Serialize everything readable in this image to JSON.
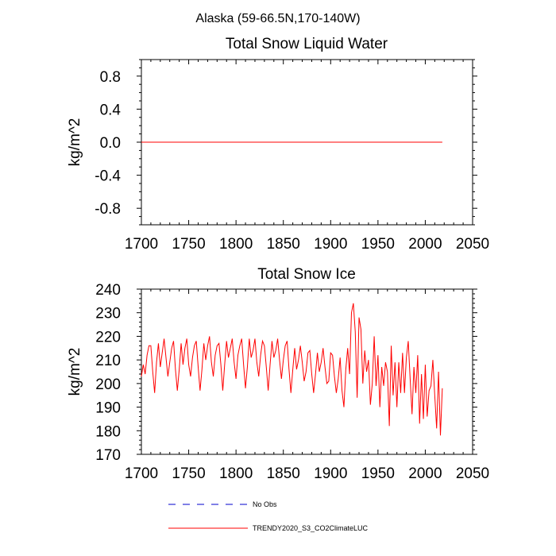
{
  "figure_title": "Alaska (59-66.5N,170-140W)",
  "colors": {
    "model": "#ff0000",
    "obs": "#0000cc",
    "axis": "#000000"
  },
  "legend": [
    {
      "label": "No Obs",
      "style": "dashed",
      "color": "#0000cc"
    },
    {
      "label": "TRENDY2020_S3_CO2ClimateLUC",
      "style": "solid",
      "color": "#ff0000"
    }
  ],
  "chart_data": [
    {
      "type": "line",
      "title": "Total Snow Liquid Water",
      "xlabel": "",
      "ylabel": "kg/m^2",
      "xlim": [
        1700,
        2050
      ],
      "ylim": [
        -1.0,
        1.0
      ],
      "xticks": [
        "1700",
        "1750",
        "1800",
        "1850",
        "1900",
        "1950",
        "2000",
        "2050"
      ],
      "yticks": [
        "-0.8",
        "-0.4",
        "0.0",
        "0.4",
        "0.8"
      ],
      "series": [
        {
          "name": "TRENDY2020_S3_CO2ClimateLUC",
          "x": [
            1700,
            2018
          ],
          "values": [
            0.0,
            0.0
          ]
        }
      ]
    },
    {
      "type": "line",
      "title": "Total Snow Ice",
      "xlabel": "",
      "ylabel": "kg/m^2",
      "xlim": [
        1700,
        2050
      ],
      "ylim": [
        170,
        240
      ],
      "xticks": [
        "1700",
        "1750",
        "1800",
        "1850",
        "1900",
        "1950",
        "2000",
        "2050"
      ],
      "yticks": [
        "170",
        "180",
        "190",
        "200",
        "210",
        "220",
        "230",
        "240"
      ],
      "series": [
        {
          "name": "TRENDY2020_S3_CO2ClimateLUC",
          "x": [
            1700,
            1702,
            1704,
            1706,
            1708,
            1710,
            1712,
            1714,
            1716,
            1718,
            1720,
            1722,
            1724,
            1726,
            1728,
            1730,
            1732,
            1734,
            1736,
            1738,
            1740,
            1742,
            1744,
            1746,
            1748,
            1750,
            1752,
            1754,
            1756,
            1758,
            1760,
            1762,
            1764,
            1766,
            1768,
            1770,
            1772,
            1774,
            1776,
            1778,
            1780,
            1782,
            1784,
            1786,
            1788,
            1790,
            1792,
            1794,
            1796,
            1798,
            1800,
            1802,
            1804,
            1806,
            1808,
            1810,
            1812,
            1814,
            1816,
            1818,
            1820,
            1822,
            1824,
            1826,
            1828,
            1830,
            1832,
            1834,
            1836,
            1838,
            1840,
            1842,
            1844,
            1846,
            1848,
            1850,
            1852,
            1854,
            1856,
            1858,
            1860,
            1862,
            1864,
            1866,
            1868,
            1870,
            1872,
            1874,
            1876,
            1878,
            1880,
            1882,
            1884,
            1886,
            1888,
            1890,
            1892,
            1894,
            1896,
            1898,
            1900,
            1902,
            1904,
            1906,
            1908,
            1910,
            1912,
            1914,
            1916,
            1918,
            1920,
            1922,
            1924,
            1926,
            1928,
            1930,
            1932,
            1934,
            1936,
            1938,
            1940,
            1942,
            1944,
            1946,
            1948,
            1950,
            1952,
            1954,
            1956,
            1958,
            1960,
            1962,
            1964,
            1966,
            1968,
            1970,
            1972,
            1974,
            1976,
            1978,
            1980,
            1982,
            1984,
            1986,
            1988,
            1990,
            1992,
            1994,
            1996,
            1998,
            2000,
            2002,
            2004,
            2006,
            2008,
            2010,
            2012,
            2014,
            2016,
            2018
          ],
          "values": [
            203,
            208,
            204,
            212,
            216,
            216,
            205,
            196,
            209,
            217,
            207,
            213,
            219,
            211,
            203,
            209,
            215,
            218,
            206,
            197,
            206,
            217,
            208,
            215,
            219,
            208,
            203,
            211,
            216,
            218,
            207,
            197,
            206,
            217,
            210,
            216,
            220,
            209,
            203,
            212,
            216,
            217,
            208,
            197,
            208,
            218,
            211,
            215,
            219,
            209,
            202,
            212,
            216,
            219,
            208,
            198,
            207,
            219,
            211,
            214,
            219,
            209,
            203,
            212,
            218,
            216,
            207,
            197,
            208,
            218,
            211,
            214,
            219,
            210,
            202,
            210,
            216,
            218,
            206,
            196,
            206,
            215,
            206,
            210,
            216,
            209,
            201,
            205,
            213,
            214,
            204,
            196,
            204,
            213,
            205,
            209,
            215,
            207,
            200,
            201,
            213,
            212,
            203,
            196,
            202,
            211,
            197,
            190,
            206,
            215,
            204,
            230,
            234,
            222,
            194,
            228,
            223,
            200,
            214,
            205,
            210,
            191,
            200,
            220,
            199,
            212,
            190,
            207,
            199,
            209,
            205,
            182,
            216,
            195,
            209,
            190,
            209,
            196,
            213,
            196,
            211,
            218,
            202,
            187,
            207,
            196,
            212,
            183,
            204,
            185,
            208,
            186,
            197,
            199,
            210,
            195,
            181,
            205,
            178,
            198
          ]
        }
      ]
    }
  ]
}
